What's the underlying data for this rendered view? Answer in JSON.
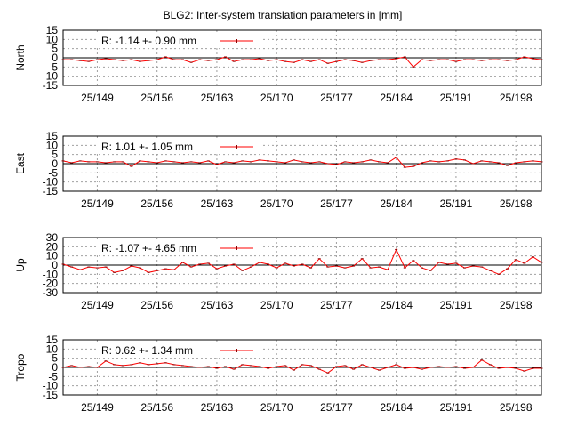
{
  "title": "BLG2: Inter-system translation parameters in [mm]",
  "colors": {
    "series": "#ff0000",
    "marker": "#8b0000",
    "grid": "#a0a0a0",
    "axis": "#000000"
  },
  "chart_data": {
    "type": "line",
    "title": "BLG2: Inter-system translation parameters in [mm]",
    "x_ticks": [
      "25/149",
      "25/156",
      "25/163",
      "25/170",
      "25/177",
      "25/184",
      "25/191",
      "25/198"
    ],
    "x_tick_days": [
      149,
      156,
      163,
      170,
      177,
      184,
      191,
      198
    ],
    "x_range": [
      145,
      201
    ],
    "grid": true,
    "panels": [
      {
        "ylabel": "North",
        "ylim": [
          -15,
          15
        ],
        "yticks": [
          15,
          10,
          5,
          0,
          -5,
          -10,
          -15
        ],
        "legend": "R:  -1.14 +- 0.90 mm",
        "x": [
          145,
          146,
          147,
          148,
          149,
          150,
          151,
          152,
          153,
          154,
          155,
          156,
          157,
          158,
          159,
          160,
          161,
          162,
          163,
          164,
          165,
          166,
          167,
          168,
          169,
          170,
          171,
          172,
          173,
          174,
          175,
          176,
          177,
          178,
          179,
          180,
          181,
          182,
          183,
          184,
          185,
          186,
          187,
          188,
          189,
          190,
          191,
          192,
          193,
          194,
          195,
          196,
          197,
          198,
          199,
          200,
          201
        ],
        "values": [
          -1,
          -1,
          -1.5,
          -2,
          -1,
          -0.5,
          -1,
          -1.5,
          -1,
          -2,
          -1.5,
          -1,
          0.5,
          -1,
          -1,
          -2.5,
          -1,
          -1.5,
          -1,
          0.5,
          -2,
          -1,
          -1,
          -0.5,
          -1.5,
          -1,
          -2,
          -2.5,
          -1,
          -2,
          -1,
          -3,
          -2,
          -1,
          -1.5,
          -2.5,
          -1.5,
          -1,
          -1,
          -0.5,
          0.5,
          -5,
          -1,
          -1.5,
          -1,
          -1,
          -2,
          -1,
          -1,
          -1.5,
          -1,
          -1,
          -1.5,
          -1,
          0.5,
          -0.5,
          -1
        ]
      },
      {
        "ylabel": "East",
        "ylim": [
          -15,
          15
        ],
        "yticks": [
          15,
          10,
          5,
          0,
          -5,
          -10,
          -15
        ],
        "legend": "R:   1.01 +- 1.05 mm",
        "x": [
          145,
          146,
          147,
          148,
          149,
          150,
          151,
          152,
          153,
          154,
          155,
          156,
          157,
          158,
          159,
          160,
          161,
          162,
          163,
          164,
          165,
          166,
          167,
          168,
          169,
          170,
          171,
          172,
          173,
          174,
          175,
          176,
          177,
          178,
          179,
          180,
          181,
          182,
          183,
          184,
          185,
          186,
          187,
          188,
          189,
          190,
          191,
          192,
          193,
          194,
          195,
          196,
          197,
          198,
          199,
          200,
          201
        ],
        "values": [
          1.5,
          0.5,
          1.5,
          1,
          1,
          0.5,
          1,
          1,
          -1.5,
          1.5,
          1,
          0.5,
          1.5,
          1,
          0.5,
          1,
          0.5,
          1.5,
          -0.5,
          1,
          0.5,
          1.5,
          1,
          2,
          1.5,
          1,
          0.5,
          2,
          1,
          0.5,
          1,
          0,
          -0.5,
          1,
          0.5,
          1,
          2,
          1,
          0.5,
          3.5,
          -2,
          -1.5,
          0.5,
          1.5,
          1,
          1.5,
          2.5,
          2,
          0,
          1.5,
          1,
          0.5,
          -1,
          0.5,
          1,
          1.5,
          1
        ]
      },
      {
        "ylabel": "Up",
        "ylim": [
          -30,
          30
        ],
        "yticks": [
          30,
          20,
          10,
          0,
          -10,
          -20,
          -30
        ],
        "legend": "R:  -1.07 +- 4.65 mm",
        "x": [
          145,
          146,
          147,
          148,
          149,
          150,
          151,
          152,
          153,
          154,
          155,
          156,
          157,
          158,
          159,
          160,
          161,
          162,
          163,
          164,
          165,
          166,
          167,
          168,
          169,
          170,
          171,
          172,
          173,
          174,
          175,
          176,
          177,
          178,
          179,
          180,
          181,
          182,
          183,
          184,
          185,
          186,
          187,
          188,
          189,
          190,
          191,
          192,
          193,
          194,
          195,
          196,
          197,
          198,
          199,
          200,
          201
        ],
        "values": [
          1,
          -2,
          -5,
          -2,
          -3,
          -2,
          -8,
          -6,
          -1,
          -3,
          -8,
          -6,
          -4,
          -5,
          3,
          -2,
          1,
          2,
          -4,
          -1,
          1,
          -6,
          -2,
          3,
          1,
          -3,
          2,
          -1,
          1,
          -3,
          7,
          -2,
          -1,
          -3,
          -1,
          7,
          -3,
          -2,
          -5,
          17,
          -3,
          5,
          -3,
          -6,
          3,
          1,
          2,
          -3,
          -1,
          -2,
          -6,
          -10,
          -4,
          6,
          2,
          9,
          3
        ]
      },
      {
        "ylabel": "Tropo",
        "ylim": [
          -15,
          15
        ],
        "yticks": [
          15,
          10,
          5,
          0,
          -5,
          -10,
          -15
        ],
        "legend": "R:   0.62 +- 1.34 mm",
        "x": [
          145,
          146,
          147,
          148,
          149,
          150,
          151,
          152,
          153,
          154,
          155,
          156,
          157,
          158,
          159,
          160,
          161,
          162,
          163,
          164,
          165,
          166,
          167,
          168,
          169,
          170,
          171,
          172,
          173,
          174,
          175,
          176,
          177,
          178,
          179,
          180,
          181,
          182,
          183,
          184,
          185,
          186,
          187,
          188,
          189,
          190,
          191,
          192,
          193,
          194,
          195,
          196,
          197,
          198,
          199,
          200,
          201
        ],
        "values": [
          0,
          1,
          0,
          0.5,
          0,
          3.5,
          1.5,
          1,
          1.5,
          2.5,
          1.5,
          2,
          2.5,
          1.5,
          1,
          0.5,
          0,
          0.5,
          -0.5,
          0.5,
          -1,
          1.5,
          1,
          0.5,
          -0.5,
          0.5,
          1,
          -1.5,
          1.5,
          1,
          -1,
          -3,
          0.5,
          1,
          -1,
          1.5,
          0,
          -1.5,
          0,
          1.5,
          -0.5,
          0,
          -1,
          0,
          0.5,
          0,
          0.5,
          -0.5,
          0,
          4,
          1.5,
          -0.5,
          0,
          -0.5,
          -2,
          -0.5,
          -0.5
        ]
      }
    ]
  }
}
